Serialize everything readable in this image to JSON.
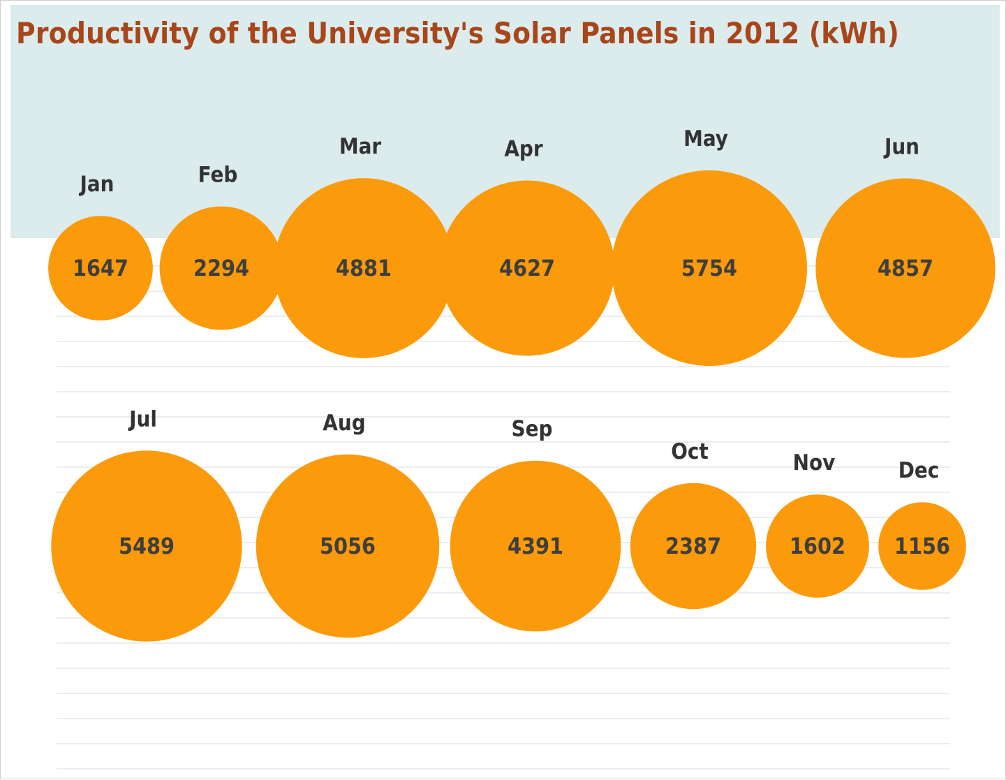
{
  "title": "Productivity of the University's Solar Panels in 2012 (kWh)",
  "colors": {
    "bubble": "#fb9a0b",
    "title": "#a8461b",
    "text": "#333333",
    "sky": "#dcebeb"
  },
  "chart_data": {
    "type": "bubble",
    "title": "Productivity of the University's Solar Panels in 2012 (kWh)",
    "unit": "kWh",
    "categories": [
      "Jan",
      "Feb",
      "Mar",
      "Apr",
      "May",
      "Jun",
      "Jul",
      "Aug",
      "Sep",
      "Oct",
      "Nov",
      "Dec"
    ],
    "values": [
      1647,
      2294,
      4881,
      4627,
      5754,
      4857,
      5489,
      5056,
      4391,
      2387,
      1602,
      1156
    ]
  }
}
